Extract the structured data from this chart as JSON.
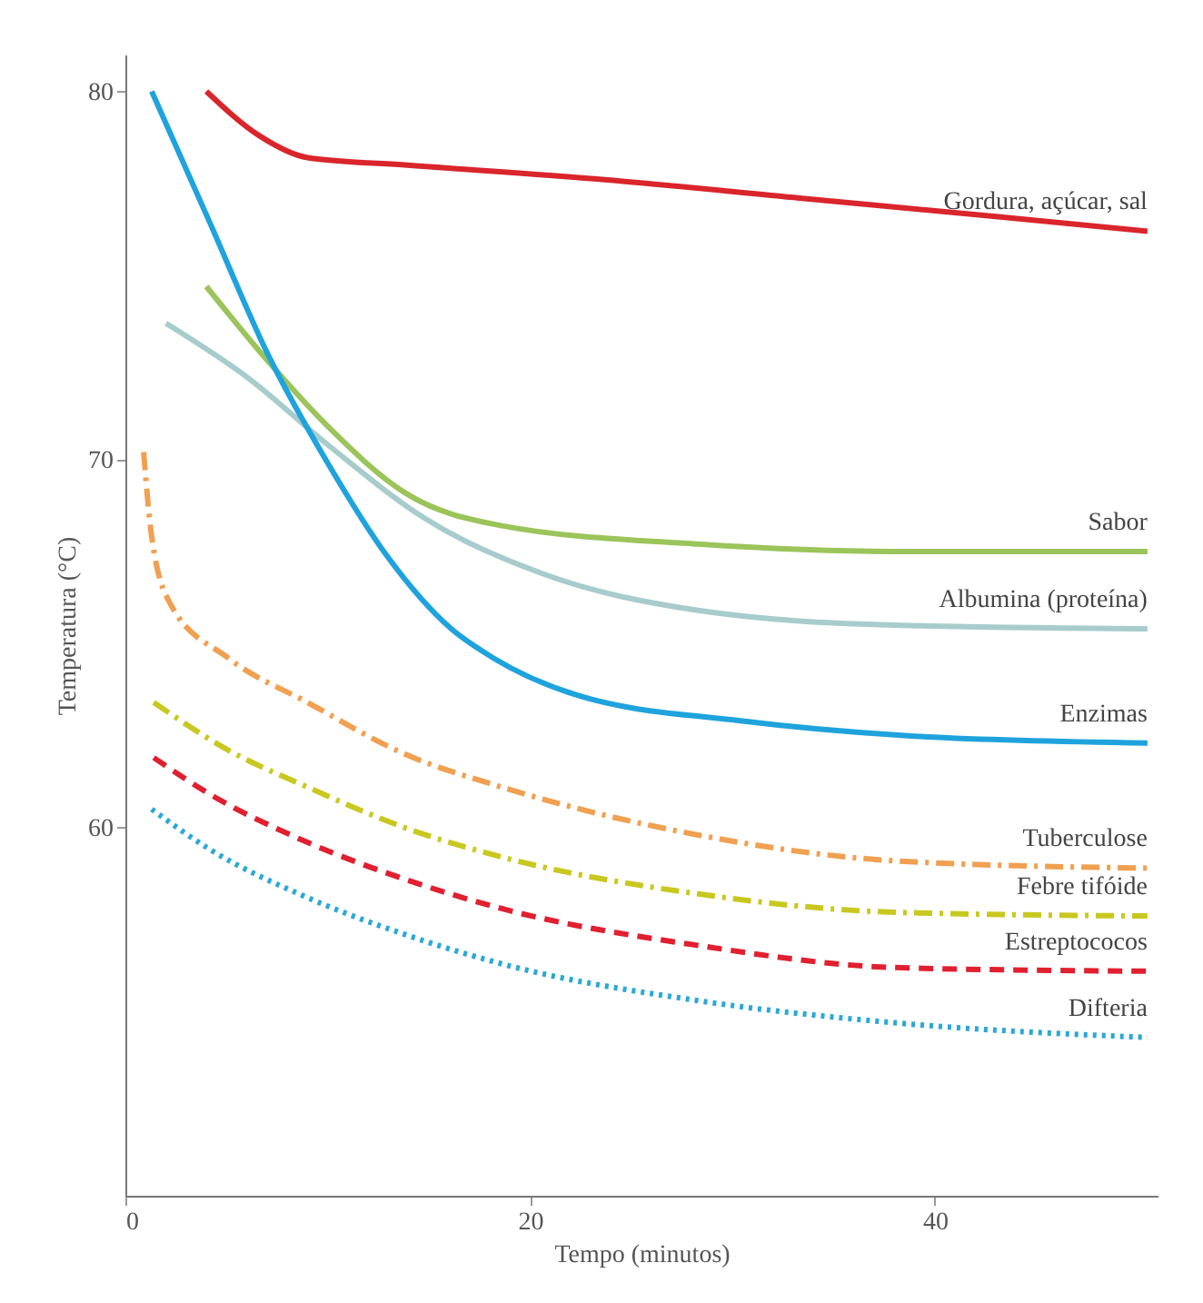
{
  "chart_data": {
    "type": "line",
    "xlabel": "Tempo (minutos)",
    "ylabel": "Temperatura (°C)",
    "xlim": [
      0,
      51
    ],
    "ylim": [
      50,
      81
    ],
    "xticks": [
      0,
      20,
      40
    ],
    "yticks": [
      60,
      70,
      80
    ],
    "grid": false,
    "legend": false,
    "marker": "none",
    "series": [
      {
        "name": "Gordura, açúcar, sal",
        "color": "#d9252b",
        "line_style": "solid",
        "x": [
          4,
          6.6,
          9,
          13.8,
          23.7,
          33.3,
          43,
          50.5
        ],
        "values": [
          80,
          78.8,
          78.2,
          78.0,
          77.6,
          77.1,
          76.6,
          76.2
        ]
      },
      {
        "name": "Sabor",
        "color": "#9bc45a",
        "line_style": "solid",
        "x": [
          4,
          7,
          10,
          13.8,
          18.6,
          28.3,
          38,
          50.5
        ],
        "values": [
          74.7,
          72.7,
          70.9,
          69.1,
          68.2,
          67.7,
          67.5,
          67.5
        ]
      },
      {
        "name": "Albumina (proteína)",
        "color": "#a8cccc",
        "line_style": "solid",
        "x": [
          2,
          6.1,
          10,
          14.8,
          20.6,
          28.3,
          38,
          50.5
        ],
        "values": [
          73.7,
          72.2,
          70.4,
          68.4,
          66.9,
          65.9,
          65.5,
          65.4
        ]
      },
      {
        "name": "Enzimas",
        "color": "#1fa3dd",
        "line_style": "solid",
        "x": [
          1.3,
          4.2,
          7,
          10,
          12.9,
          16.1,
          18.2,
          22.3,
          30.4,
          38.5,
          50.5
        ],
        "values": [
          80,
          76.4,
          72.9,
          69.9,
          67.4,
          65.4,
          64.6,
          63.6,
          62.9,
          62.5,
          62.3
        ]
      },
      {
        "name": "Tuberculose",
        "color": "#f0a050",
        "line_style": "dashdot",
        "x": [
          0.9,
          1.3,
          2.2,
          5.1,
          9,
          13.8,
          18.6,
          28.3,
          38,
          50.5
        ],
        "values": [
          70.2,
          67.9,
          66.1,
          64.6,
          63.4,
          62.0,
          61.1,
          59.8,
          59.1,
          58.9
        ]
      },
      {
        "name": "Febre tifóide",
        "color": "#c8c820",
        "line_style": "dashdot",
        "x": [
          1.4,
          5.1,
          9,
          13.8,
          18.6,
          28.3,
          38,
          50.5
        ],
        "values": [
          63.4,
          62.1,
          61.1,
          60.0,
          59.2,
          58.2,
          57.7,
          57.6
        ]
      },
      {
        "name": "Estreptococos",
        "color": "#e02030",
        "line_style": "dashed",
        "x": [
          1.4,
          4.2,
          9,
          13.8,
          18.6,
          28.3,
          38,
          50.5
        ],
        "values": [
          61.9,
          60.9,
          59.6,
          58.6,
          57.8,
          56.8,
          56.2,
          56.1
        ]
      },
      {
        "name": "Difteria",
        "color": "#2aa8d8",
        "line_style": "dotted",
        "x": [
          1.3,
          4.2,
          9,
          13.8,
          18.6,
          28.3,
          38,
          50.5
        ],
        "values": [
          60.5,
          59.4,
          58.1,
          57.1,
          56.3,
          55.3,
          54.7,
          54.3
        ]
      }
    ]
  }
}
